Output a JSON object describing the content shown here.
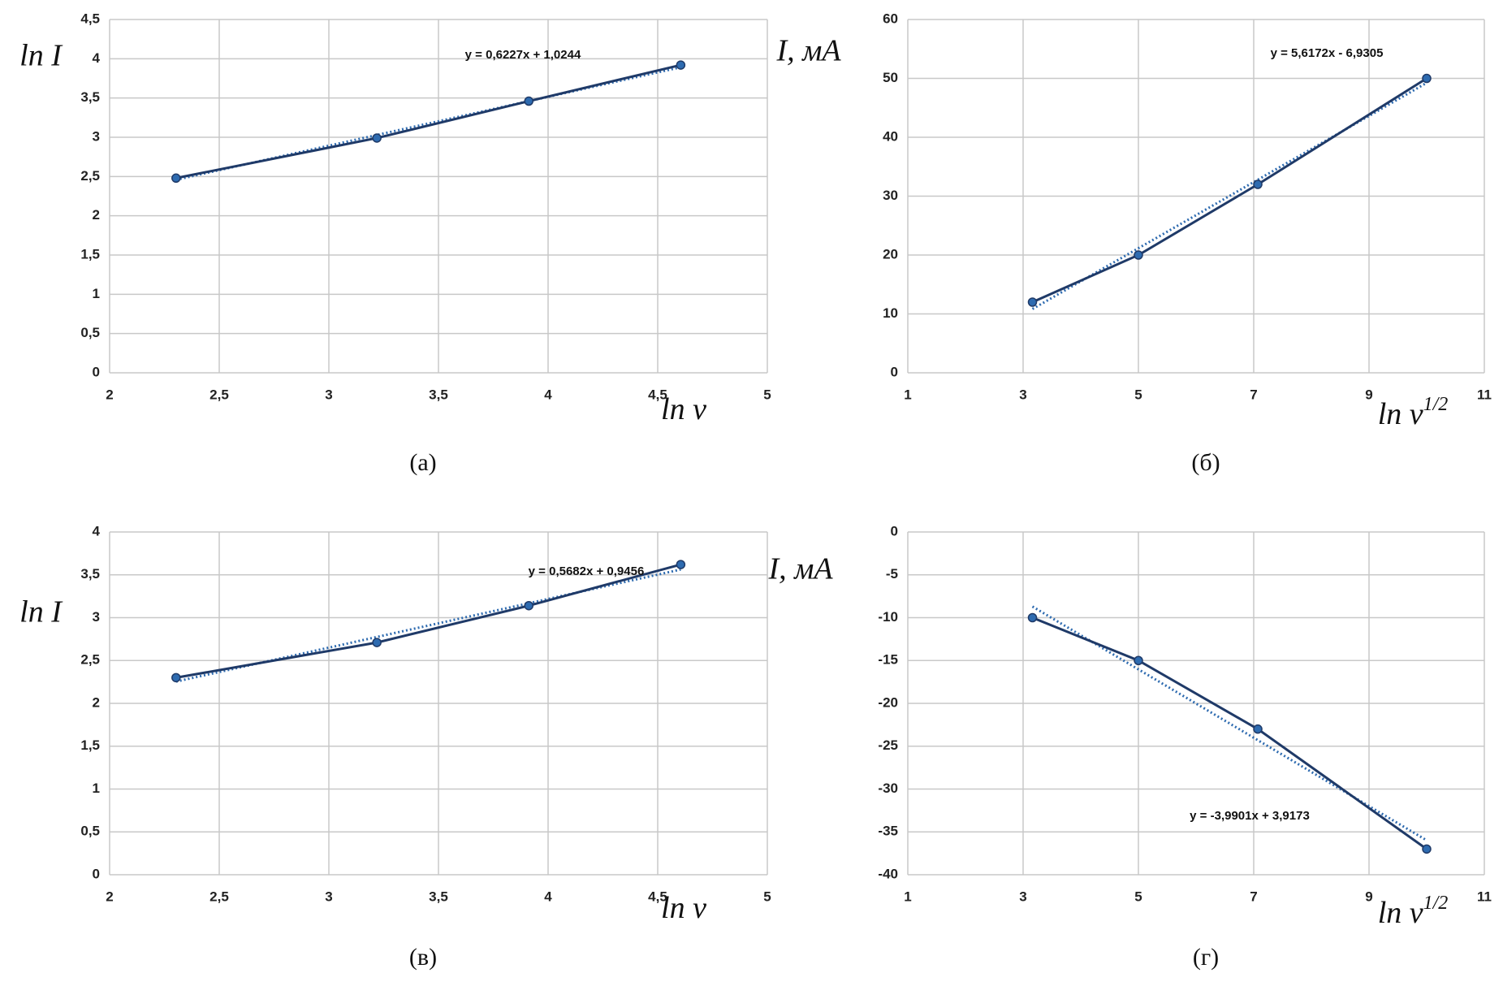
{
  "chart_data": [
    {
      "type": "line",
      "caption": "(а)",
      "xlabel": "ln v",
      "ylabel": "ln I",
      "x": [
        2.303,
        3.219,
        3.912,
        4.605
      ],
      "values": [
        2.48,
        2.99,
        3.46,
        3.92
      ],
      "color": "#1f3a68",
      "marker_color": "#2e6bb0",
      "xlim": [
        2,
        5
      ],
      "xticks": [
        2,
        {
          "value": 2.5,
          "label": "2,5"
        },
        3,
        {
          "value": 3.5,
          "label": "3,5"
        },
        4,
        {
          "value": 4.5,
          "label": "4,5"
        },
        5
      ],
      "ylim": [
        0,
        4.5
      ],
      "yticks": [
        0,
        {
          "value": 0.5,
          "label": "0,5"
        },
        1,
        {
          "value": 1.5,
          "label": "1,5"
        },
        2,
        {
          "value": 2.5,
          "label": "2,5"
        },
        3,
        {
          "value": 3.5,
          "label": "3,5"
        },
        4,
        {
          "value": 4.5,
          "label": "4,5"
        }
      ],
      "grid": true,
      "trendline": {
        "slope": 0.6227,
        "intercept": 1.0244,
        "label": "y = 0,6227x + 1,0244"
      }
    },
    {
      "type": "line",
      "caption": "(б)",
      "xlabel": "ln v",
      "xlabel_sup": "1/2",
      "ylabel": "I, мА",
      "x": [
        3.162,
        5,
        7.071,
        10
      ],
      "values": [
        12,
        20,
        32,
        50
      ],
      "color": "#1f3a68",
      "marker_color": "#2e6bb0",
      "xlim": [
        1,
        11
      ],
      "xticks": [
        1,
        3,
        5,
        7,
        9,
        11
      ],
      "ylim": [
        0,
        60
      ],
      "yticks": [
        0,
        10,
        20,
        30,
        40,
        50,
        60
      ],
      "grid": true,
      "trendline": {
        "slope": 5.6172,
        "intercept": -6.9305,
        "label": "y = 5,6172x - 6,9305"
      }
    },
    {
      "type": "line",
      "caption": "(в)",
      "xlabel": "ln v",
      "ylabel": "ln I",
      "x": [
        2.303,
        3.219,
        3.912,
        4.605
      ],
      "values": [
        2.3,
        2.71,
        3.14,
        3.62
      ],
      "color": "#1f3a68",
      "marker_color": "#2e6bb0",
      "xlim": [
        2,
        5
      ],
      "xticks": [
        2,
        {
          "value": 2.5,
          "label": "2,5"
        },
        3,
        {
          "value": 3.5,
          "label": "3,5"
        },
        4,
        {
          "value": 4.5,
          "label": "4,5"
        },
        5
      ],
      "ylim": [
        0,
        4
      ],
      "yticks": [
        0,
        {
          "value": 0.5,
          "label": "0,5"
        },
        1,
        {
          "value": 1.5,
          "label": "1,5"
        },
        2,
        {
          "value": 2.5,
          "label": "2,5"
        },
        3,
        {
          "value": 3.5,
          "label": "3,5"
        },
        4
      ],
      "grid": true,
      "trendline": {
        "slope": 0.5682,
        "intercept": 0.9456,
        "label": "y = 0,5682x + 0,9456"
      }
    },
    {
      "type": "line",
      "caption": "(г)",
      "xlabel": "ln v",
      "xlabel_sup": "1/2",
      "ylabel": "I, мА",
      "x": [
        3.162,
        5,
        7.071,
        10
      ],
      "values": [
        -10,
        -15,
        -23,
        -37
      ],
      "color": "#1f3a68",
      "marker_color": "#2e6bb0",
      "xlim": [
        1,
        11
      ],
      "xticks": [
        1,
        3,
        5,
        7,
        9,
        11
      ],
      "ylim": [
        -40,
        0
      ],
      "yticks": [
        -40,
        -35,
        -30,
        -25,
        -20,
        -15,
        -10,
        -5,
        0
      ],
      "grid": true,
      "trendline": {
        "slope": -3.9901,
        "intercept": 3.9173,
        "label": "y = -3,9901x + 3,9173"
      }
    }
  ]
}
